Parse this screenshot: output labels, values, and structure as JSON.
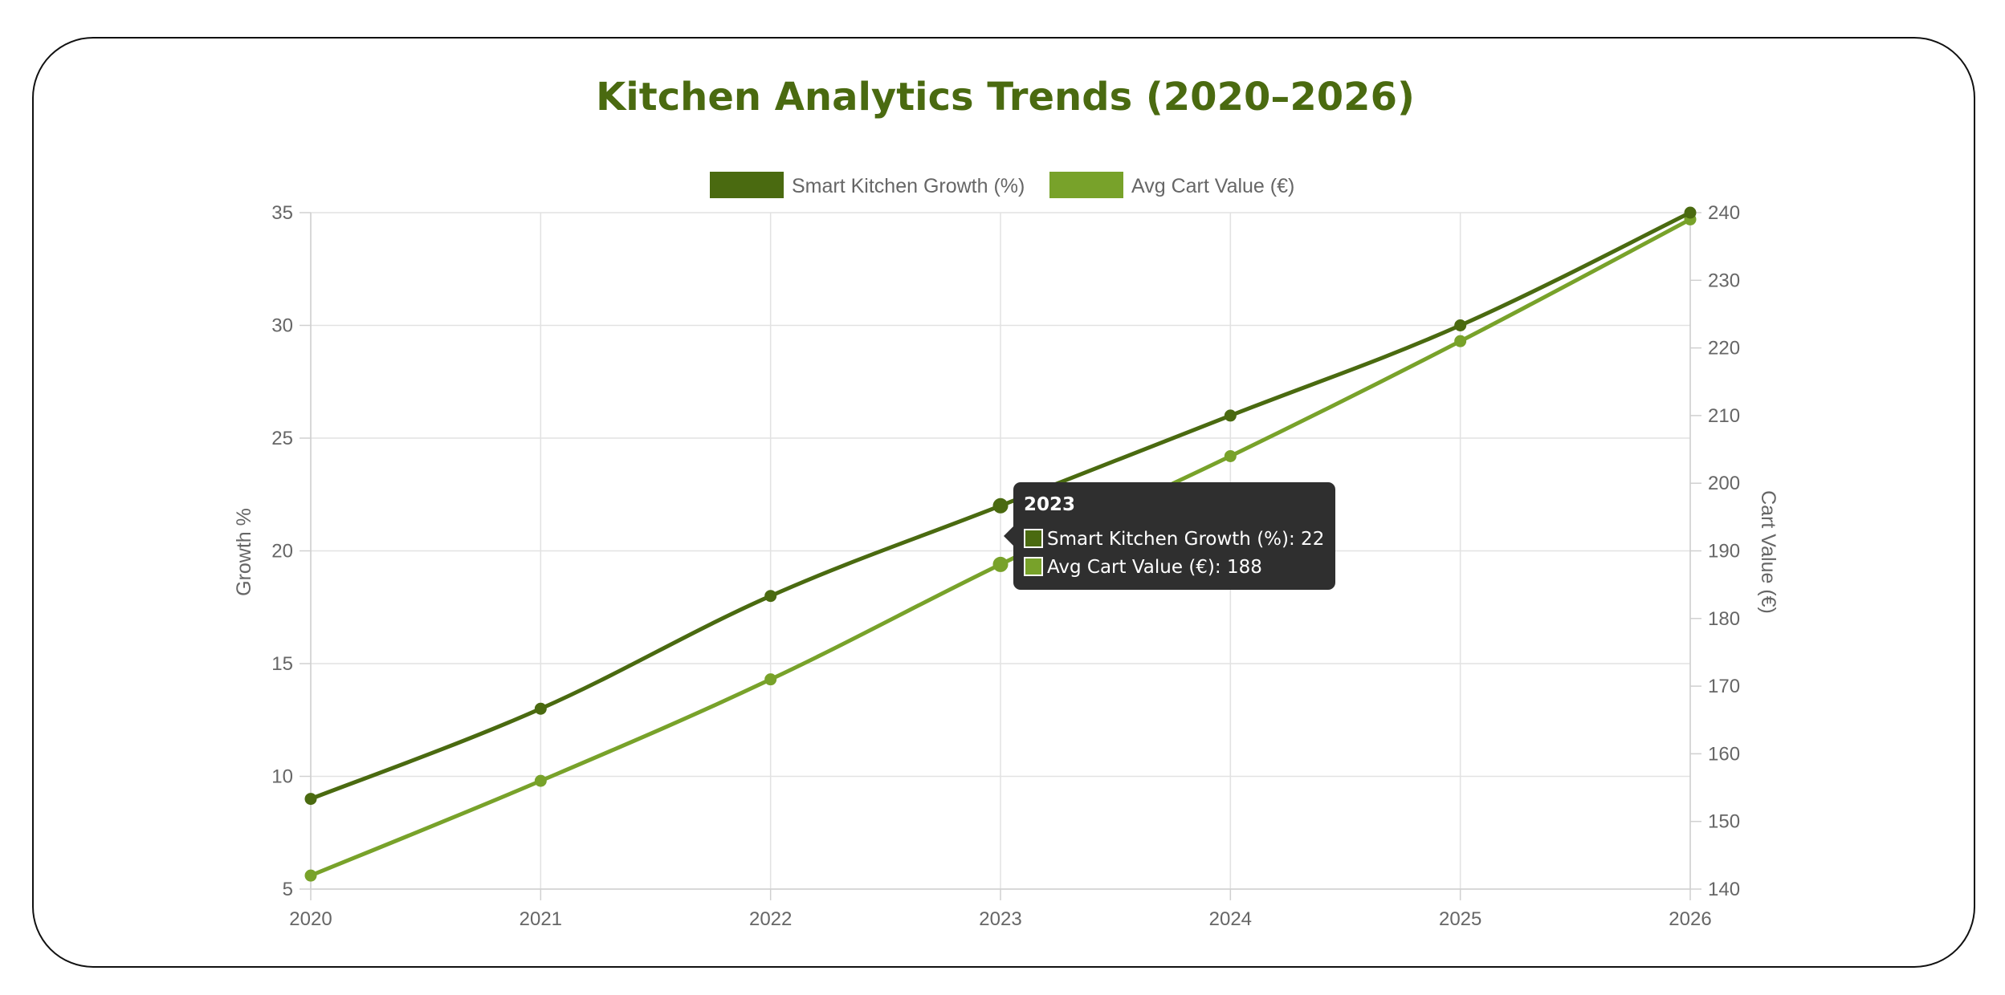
{
  "chart_data": {
    "type": "line",
    "title": "Kitchen Analytics Trends (2020–2026)",
    "categories": [
      "2020",
      "2021",
      "2022",
      "2023",
      "2024",
      "2025",
      "2026"
    ],
    "series": [
      {
        "name": "Smart Kitchen Growth (%)",
        "axis": "left",
        "color": "#4a6a10",
        "values": [
          9,
          13,
          18,
          22,
          26,
          30,
          35
        ]
      },
      {
        "name": "Avg Cart Value (€)",
        "axis": "right",
        "color": "#78a22a",
        "values": [
          142,
          156,
          171,
          188,
          204,
          221,
          239
        ]
      }
    ],
    "y_left": {
      "label": "Growth %",
      "range": [
        5,
        35
      ],
      "ticks": [
        "35",
        "30",
        "25",
        "20",
        "15",
        "10",
        "5"
      ]
    },
    "y_right": {
      "label": "Cart Value (€)",
      "range": [
        140,
        240
      ],
      "ticks": [
        "240",
        "230",
        "220",
        "210",
        "200",
        "190",
        "180",
        "170",
        "160",
        "150",
        "140"
      ]
    },
    "grid": true,
    "legend_position": "top",
    "tooltip": {
      "title": "2023",
      "line1": "Smart Kitchen Growth (%): 22",
      "line2": "Avg Cart Value (€): 188"
    }
  }
}
